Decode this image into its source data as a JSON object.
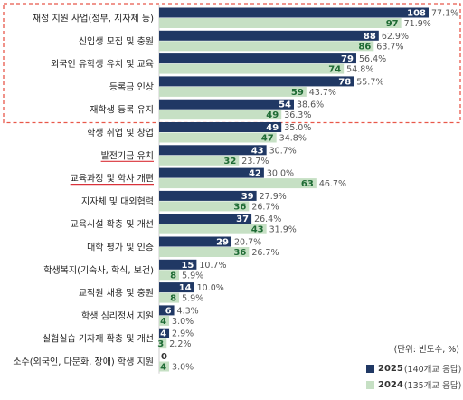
{
  "colors": {
    "series_2025": "#203864",
    "series_2024": "#c6e0c4",
    "label_2025_inside": "#ffffff",
    "label_2024_inside": "#1e6b34",
    "percent_text": "#555555",
    "highlight_box": "#e8584a",
    "underline": "#d9323a",
    "gridline": "#cfcfcf"
  },
  "legend": {
    "unit": "(단위: 빈도수, %)",
    "items": [
      {
        "year": "2025",
        "note": "(140개교 응답)"
      },
      {
        "year": "2024",
        "note": "(135개교 응답)"
      }
    ]
  },
  "chart_data": {
    "type": "bar",
    "orientation": "horizontal",
    "title": "",
    "categories": [
      "재정 지원 사업(정부, 지자체 등)",
      "신입생 모집 및 충원",
      "외국인 유학생 유치 및 교육",
      "등록금 인상",
      "재학생 등록 유지",
      "학생 취업 및 창업",
      "발전기금 유치",
      "교육과정 및 학사 개편",
      "지자체 및 대외협력",
      "교육시설 확충 및 개선",
      "대학 평가 및 인증",
      "학생복지(기숙사, 학식, 보건)",
      "교직원 채용 및 충원",
      "학생 심리정서 지원",
      "실험실습 기자재 확충 및 개선",
      "소수(외국인, 다문화, 장애) 학생 지원"
    ],
    "series": [
      {
        "name": "2025",
        "values": [
          108,
          88,
          79,
          78,
          54,
          49,
          43,
          42,
          39,
          37,
          29,
          15,
          14,
          6,
          4,
          0
        ],
        "percents": [
          "77.1%",
          "62.9%",
          "56.4%",
          "55.7%",
          "38.6%",
          "35.0%",
          "30.7%",
          "30.0%",
          "27.9%",
          "26.4%",
          "20.7%",
          "10.7%",
          "10.0%",
          "4.3%",
          "2.9%",
          ""
        ]
      },
      {
        "name": "2024",
        "values": [
          97,
          86,
          74,
          59,
          49,
          47,
          32,
          63,
          36,
          43,
          36,
          8,
          8,
          4,
          3,
          4
        ],
        "percents": [
          "71.9%",
          "63.7%",
          "54.8%",
          "43.7%",
          "36.3%",
          "34.8%",
          "23.7%",
          "46.7%",
          "26.7%",
          "31.9%",
          "26.7%",
          "5.9%",
          "5.9%",
          "3.0%",
          "2.2%",
          "3.0%"
        ]
      }
    ],
    "highlight": {
      "style": "dashed box",
      "categories": [
        0,
        1,
        2,
        3,
        4
      ]
    },
    "underlined_categories": [
      6,
      7
    ],
    "xlim": [
      0,
      108
    ]
  }
}
